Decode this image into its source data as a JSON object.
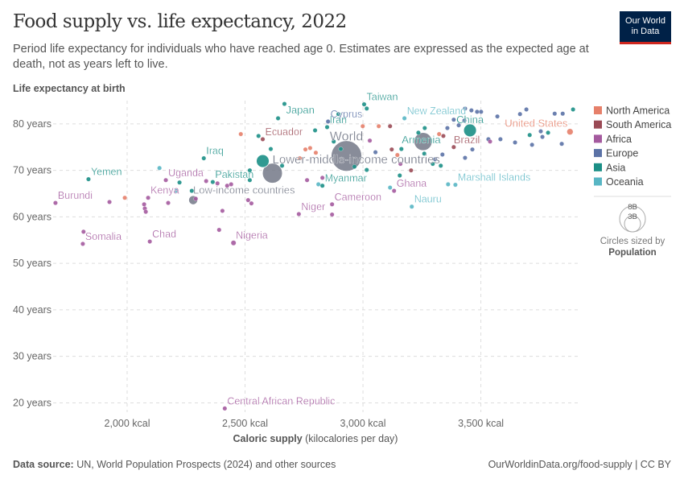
{
  "header": {
    "title": "Food supply vs. life expectancy, 2022",
    "subtitle": "Period life expectancy for individuals who have reached age 0. Estimates are expressed as the expected age at death, not as years left to live.",
    "logo_line1": "Our World",
    "logo_line2": "in Data"
  },
  "footer": {
    "source_label": "Data source:",
    "source": "UN, World Population Prospects (2024) and other sources",
    "link": "OurWorldinData.org/food-supply | CC BY"
  },
  "chart_data": {
    "type": "scatter",
    "title": "Food supply vs. life expectancy, 2022",
    "ylabel": "Life expectancy at birth",
    "xlabel": "Caloric supply",
    "xlabel_unit": "(kilocalories per day)",
    "xlim": [
      1686,
      3911
    ],
    "ylim": [
      18,
      85
    ],
    "xticks": [
      2000,
      2500,
      3000,
      3500
    ],
    "xtick_labels": [
      "2,000 kcal",
      "2,500 kcal",
      "3,000 kcal",
      "3,500 kcal"
    ],
    "yticks": [
      20,
      30,
      40,
      50,
      60,
      70,
      80
    ],
    "ytick_labels": [
      "20 years",
      "30 years",
      "40 years",
      "50 years",
      "60 years",
      "70 years",
      "80 years"
    ],
    "grid": true,
    "legend_position": "right",
    "legend": [
      {
        "key": "NA",
        "name": "North America",
        "color": "#e6806a"
      },
      {
        "key": "SA",
        "name": "South America",
        "color": "#9a4a55"
      },
      {
        "key": "AF",
        "name": "Africa",
        "color": "#a45a9e"
      },
      {
        "key": "EU",
        "name": "Europe",
        "color": "#5b72a6"
      },
      {
        "key": "AS",
        "name": "Asia",
        "color": "#1b8f86"
      },
      {
        "key": "OC",
        "name": "Oceania",
        "color": "#58b6c4"
      }
    ],
    "aggregate_color": "#737887",
    "size_legend": {
      "big": "8B",
      "small": "3B",
      "caption": "Circles sized by",
      "variable": "Population"
    },
    "columns": [
      "kcal",
      "life_expectancy",
      "region",
      "label",
      "population_billions"
    ],
    "points": [
      [
        2482,
        77.8,
        "NA",
        "",
        0
      ],
      [
        2137,
        70.5,
        "OC",
        "",
        0
      ],
      [
        1925,
        63.2,
        "AF",
        "",
        0
      ],
      [
        1990,
        64.1,
        "NA",
        "",
        0
      ],
      [
        2072,
        62.7,
        "AF",
        "",
        0
      ],
      [
        2075,
        61.8,
        "AF",
        "",
        0
      ],
      [
        2079,
        61.1,
        "AF",
        "",
        0
      ],
      [
        2174,
        63.0,
        "AF",
        "",
        0
      ],
      [
        2209,
        65.6,
        "OC",
        "",
        0
      ],
      [
        2222,
        67.4,
        "AS",
        "",
        0
      ],
      [
        2335,
        67.7,
        "AF",
        "",
        0
      ],
      [
        2383,
        67.2,
        "AF",
        "",
        0
      ],
      [
        2424,
        66.7,
        "AF",
        "",
        0
      ],
      [
        2441,
        67.0,
        "AF",
        "",
        0
      ],
      [
        2274,
        65.6,
        "AS",
        "",
        0
      ],
      [
        2291,
        63.9,
        "AF",
        "",
        0
      ],
      [
        2390,
        57.2,
        "AF",
        "",
        0
      ],
      [
        2404,
        61.3,
        "AF",
        "",
        0
      ],
      [
        2513,
        63.6,
        "AF",
        "",
        0
      ],
      [
        2527,
        62.9,
        "AF",
        "",
        0
      ],
      [
        2520,
        67.9,
        "AS",
        "",
        0
      ],
      [
        2520,
        70.0,
        "AS",
        "",
        0
      ],
      [
        2609,
        74.6,
        "AS",
        "",
        0
      ],
      [
        2557,
        77.4,
        "AS",
        "",
        0
      ],
      [
        2657,
        71.0,
        "AS",
        "",
        0
      ],
      [
        2732,
        72.6,
        "NA",
        "",
        0
      ],
      [
        2776,
        74.8,
        "NA",
        "",
        0
      ],
      [
        2800,
        73.8,
        "NA",
        "",
        0
      ],
      [
        2797,
        78.6,
        "AS",
        "",
        0
      ],
      [
        2640,
        81.2,
        "AS",
        "",
        0
      ],
      [
        2756,
        74.5,
        "NA",
        "",
        0
      ],
      [
        2876,
        76.2,
        "AS",
        "",
        0
      ],
      [
        2999,
        79.5,
        "NA",
        "",
        0
      ],
      [
        3067,
        79.5,
        "NA",
        "",
        0
      ],
      [
        3115,
        79.5,
        "SA",
        "",
        0
      ],
      [
        3016,
        83.3,
        "AS",
        "",
        0
      ],
      [
        3016,
        70.1,
        "AS",
        "",
        0
      ],
      [
        2964,
        70.8,
        "AS",
        "",
        0
      ],
      [
        3122,
        74.5,
        "SA",
        "",
        0
      ],
      [
        3053,
        73.9,
        "EU",
        "",
        0
      ],
      [
        3163,
        74.6,
        "AS",
        "",
        0
      ],
      [
        3159,
        71.4,
        "AF",
        "",
        0
      ],
      [
        3146,
        73.3,
        "NA",
        "",
        0
      ],
      [
        3235,
        78.1,
        "AS",
        "",
        0
      ],
      [
        3262,
        79.1,
        "AS",
        "",
        0
      ],
      [
        3306,
        72.4,
        "EU",
        "",
        0
      ],
      [
        3337,
        73.4,
        "EU",
        "",
        0
      ],
      [
        3323,
        77.8,
        "NA",
        "",
        0
      ],
      [
        3296,
        71.4,
        "AS",
        "",
        0
      ],
      [
        3330,
        71.0,
        "AS",
        "",
        0
      ],
      [
        3341,
        77.4,
        "SA",
        "",
        0
      ],
      [
        3358,
        79.1,
        "EU",
        "",
        0
      ],
      [
        3385,
        80.9,
        "EU",
        "",
        0
      ],
      [
        3406,
        79.7,
        "EU",
        "",
        0
      ],
      [
        3430,
        80.7,
        "EU",
        "",
        0
      ],
      [
        3433,
        83.3,
        "EU",
        "",
        0
      ],
      [
        3460,
        82.9,
        "EU",
        "",
        0
      ],
      [
        3484,
        82.6,
        "EU",
        "",
        0
      ],
      [
        3501,
        82.6,
        "EU",
        "",
        0
      ],
      [
        3464,
        74.5,
        "EU",
        "",
        0
      ],
      [
        3433,
        72.7,
        "EU",
        "",
        0
      ],
      [
        3532,
        76.7,
        "EU",
        "",
        0
      ],
      [
        3583,
        76.7,
        "EU",
        "",
        0
      ],
      [
        3645,
        76.0,
        "EU",
        "",
        0
      ],
      [
        3570,
        81.6,
        "EU",
        "",
        0
      ],
      [
        3666,
        82.1,
        "EU",
        "",
        0
      ],
      [
        3693,
        83.1,
        "EU",
        "",
        0
      ],
      [
        3761,
        77.2,
        "EU",
        "",
        0
      ],
      [
        3813,
        82.2,
        "EU",
        "",
        0
      ],
      [
        3847,
        82.2,
        "EU",
        "",
        0
      ],
      [
        3891,
        83.1,
        "AS",
        "",
        0
      ],
      [
        3707,
        77.6,
        "AS",
        "",
        0
      ],
      [
        3785,
        78.1,
        "AS",
        "",
        0
      ],
      [
        3754,
        78.4,
        "EU",
        "",
        0
      ],
      [
        3843,
        75.7,
        "EU",
        "",
        0
      ],
      [
        3717,
        75.5,
        "EU",
        "",
        0
      ],
      [
        3539,
        76.2,
        "AF",
        "",
        0
      ],
      [
        3029,
        76.4,
        "AF",
        "",
        0
      ],
      [
        2828,
        68.4,
        "AF",
        "",
        0
      ],
      [
        2763,
        67.9,
        "AF",
        "",
        0
      ],
      [
        2811,
        67.0,
        "OC",
        "",
        0
      ],
      [
        2869,
        60.5,
        "AF",
        "",
        0
      ],
      [
        2896,
        82.1,
        "AS",
        "",
        0
      ],
      [
        2906,
        74.6,
        "AS",
        "",
        0
      ],
      [
        3156,
        68.9,
        "AS",
        "",
        0
      ],
      [
        3204,
        70.0,
        "SA",
        "",
        0
      ],
      [
        3115,
        66.3,
        "OC",
        "",
        0
      ],
      [
        3361,
        67.0,
        "OC",
        "",
        0
      ],
      [
        2930,
        73.1,
        "AGG",
        "World",
        8.0
      ],
      [
        3255,
        76.2,
        "AGG",
        "",
        2.8
      ],
      [
        2616,
        69.4,
        "AGG",
        "Lower-middle-income countries",
        3.4
      ],
      [
        2280,
        63.6,
        "AGG",
        "Low-income countries",
        0.7
      ],
      [
        2575,
        72.0,
        "AS",
        "",
        1.4
      ],
      [
        3454,
        78.6,
        "AS",
        "China",
        1.4
      ],
      [
        3878,
        78.3,
        "NA",
        "United States",
        0.33
      ],
      [
        2451,
        54.4,
        "AF",
        "Nigeria",
        0.22
      ],
      [
        2667,
        84.3,
        "AS",
        "Japan",
        0
      ],
      [
        2852,
        80.5,
        "EU",
        "Cyprus",
        0
      ],
      [
        3005,
        84.2,
        "AS",
        "Taiwan",
        0
      ],
      [
        3176,
        81.2,
        "OC",
        "New Zealand",
        0
      ],
      [
        3385,
        75.0,
        "SA",
        "Brazil",
        0
      ],
      [
        3260,
        73.6,
        "AS",
        "Armenia",
        0
      ],
      [
        2575,
        76.7,
        "SA",
        "Ecuador",
        0
      ],
      [
        2848,
        79.3,
        "AS",
        "Iran",
        0
      ],
      [
        2325,
        72.6,
        "AS",
        "Iraq",
        0
      ],
      [
        1836,
        68.1,
        "AS",
        "Yemen",
        0
      ],
      [
        2164,
        67.9,
        "AF",
        "Uganda",
        0
      ],
      [
        2363,
        67.5,
        "AS",
        "Pakistan",
        0
      ],
      [
        2089,
        64.1,
        "AF",
        "Kenya",
        0
      ],
      [
        1696,
        63.0,
        "AF",
        "Burundi",
        0
      ],
      [
        1812,
        54.2,
        "AF",
        "Somalia",
        0
      ],
      [
        1815,
        56.8,
        "AF",
        "",
        0
      ],
      [
        2096,
        54.7,
        "AF",
        "Chad",
        0
      ],
      [
        2728,
        60.6,
        "AF",
        "Niger",
        0
      ],
      [
        2869,
        62.7,
        "AF",
        "Cameroon",
        0
      ],
      [
        3132,
        65.6,
        "AF",
        "Ghana",
        0
      ],
      [
        3207,
        62.2,
        "OC",
        "Nauru",
        0
      ],
      [
        3392,
        66.9,
        "OC",
        "Marshall Islands",
        0
      ],
      [
        2828,
        66.7,
        "AS",
        "Myanmar",
        0
      ],
      [
        2414,
        18.8,
        "AF",
        "Central African Republic",
        0
      ]
    ]
  }
}
